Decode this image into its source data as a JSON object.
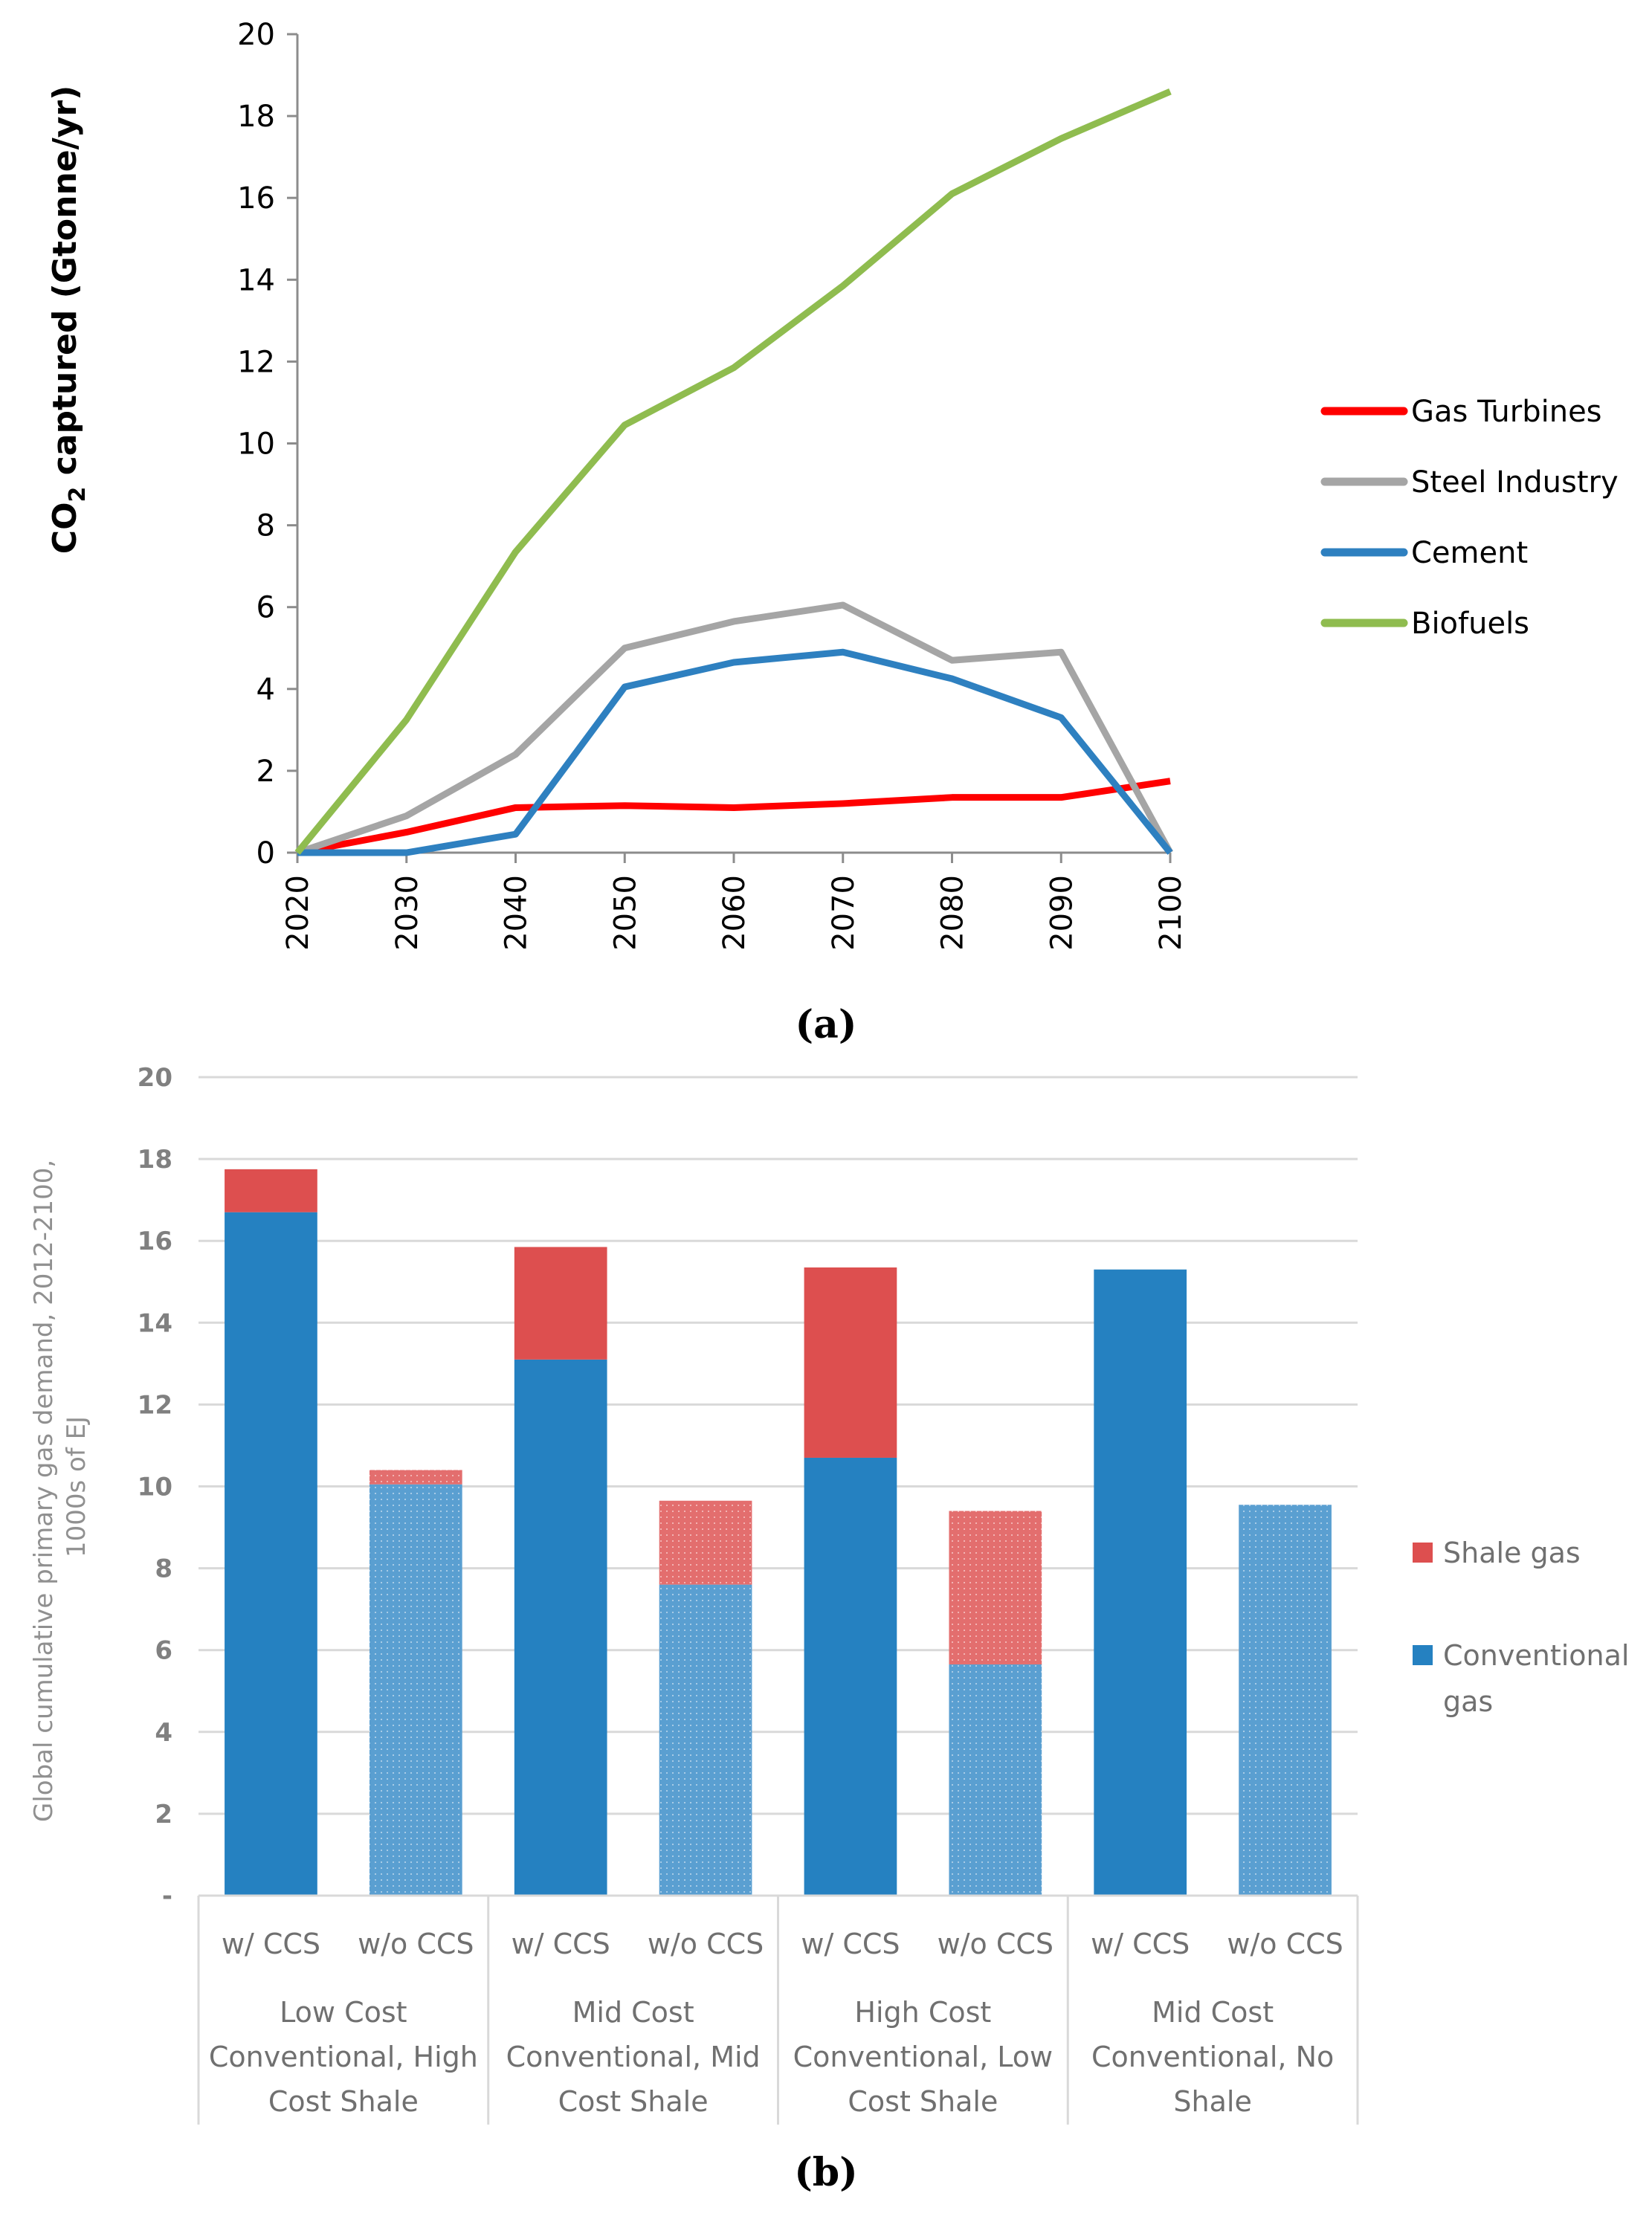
{
  "chart_data": [
    {
      "type": "line",
      "panel_label": "(a)",
      "title": "",
      "xlabel": "",
      "ylabel": "CO₂ captured (Gtonne/yr)",
      "ylabel_main": "CO",
      "ylabel_sub": "2",
      "ylabel_rest": " captured (Gtonne/yr)",
      "x": [
        "2020",
        "2030",
        "2040",
        "2050",
        "2060",
        "2070",
        "2080",
        "2090",
        "2100"
      ],
      "ylim": [
        0,
        20
      ],
      "yticks": [
        "0",
        "2",
        "4",
        "6",
        "8",
        "10",
        "12",
        "14",
        "16",
        "18",
        "20"
      ],
      "grid": false,
      "legend_position": "right",
      "series": [
        {
          "name": "Gas Turbines",
          "color": "#ff0000",
          "values": [
            0,
            0.5,
            1.1,
            1.15,
            1.1,
            1.2,
            1.35,
            1.35,
            1.75
          ]
        },
        {
          "name": "Steel Industry",
          "color": "#a5a5a5",
          "values": [
            0,
            0.9,
            2.4,
            5.0,
            5.65,
            6.05,
            4.7,
            4.9,
            0
          ]
        },
        {
          "name": "Cement",
          "color": "#2e80c0",
          "values": [
            0,
            0,
            0.45,
            4.05,
            4.65,
            4.9,
            4.25,
            3.3,
            0
          ]
        },
        {
          "name": "Biofuels",
          "color": "#8fbc4f",
          "values": [
            0,
            3.25,
            7.35,
            10.45,
            11.85,
            13.85,
            16.1,
            17.45,
            18.6
          ]
        }
      ]
    },
    {
      "type": "bar",
      "stacked": true,
      "panel_label": "(b)",
      "title": "",
      "xlabel": "",
      "ylabel_lines": [
        "Global cumulative primary gas demand, 2012-2100,",
        "1000s of EJ"
      ],
      "ylim": [
        0,
        20
      ],
      "yticks": [
        "-",
        "2",
        "4",
        "6",
        "8",
        "10",
        "12",
        "14",
        "16",
        "18",
        "20"
      ],
      "grid": true,
      "legend_position": "right",
      "categories": [
        "w/ CCS",
        "w/o CCS",
        "w/ CCS",
        "w/o CCS",
        "w/ CCS",
        "w/o CCS",
        "w/ CCS",
        "w/o CCS"
      ],
      "category_groups": [
        {
          "lines": [
            "Low Cost",
            "Conventional, High",
            "Cost Shale"
          ]
        },
        {
          "lines": [
            "Mid Cost",
            "Conventional, Mid",
            "Cost Shale"
          ]
        },
        {
          "lines": [
            "High Cost",
            "Conventional, Low",
            "Cost Shale"
          ]
        },
        {
          "lines": [
            "Mid Cost",
            "Conventional, No",
            "Shale"
          ]
        }
      ],
      "patterned": [
        false,
        true,
        false,
        true,
        false,
        true,
        false,
        true
      ],
      "series": [
        {
          "name": "Conventional gas",
          "legend_lines": [
            "Conventional",
            "gas"
          ],
          "color": "#2581c1",
          "values": [
            16.7,
            10.05,
            13.1,
            7.6,
            10.7,
            5.65,
            15.3,
            9.55
          ]
        },
        {
          "name": "Shale gas",
          "legend_lines": [
            "Shale gas"
          ],
          "color": "#dd4f4f",
          "values": [
            1.05,
            0.35,
            2.75,
            2.05,
            4.65,
            3.75,
            0,
            0
          ]
        }
      ],
      "legend_order": [
        "Shale gas",
        "Conventional gas"
      ]
    }
  ]
}
